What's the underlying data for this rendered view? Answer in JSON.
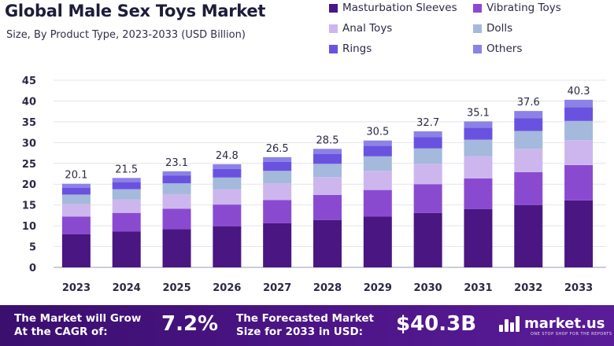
{
  "header": {
    "title": "Global Male Sex Toys Market",
    "subtitle": "Size, By Product Type, 2023-2033 (USD Billion)"
  },
  "chart_data": {
    "type": "bar",
    "stacked": true,
    "categories": [
      "2023",
      "2024",
      "2025",
      "2026",
      "2027",
      "2028",
      "2029",
      "2030",
      "2031",
      "2032",
      "2033"
    ],
    "totals": [
      20.1,
      21.5,
      23.1,
      24.8,
      26.5,
      28.5,
      30.5,
      32.7,
      35.1,
      37.6,
      40.3
    ],
    "series": [
      {
        "name": "Masturbation Sleeves",
        "color": "#4a1682",
        "values": [
          8.0,
          8.6,
          9.2,
          9.9,
          10.6,
          11.4,
          12.2,
          13.1,
          14.0,
          15.0,
          16.1
        ]
      },
      {
        "name": "Vibrating Toys",
        "color": "#8a4ad0",
        "values": [
          4.2,
          4.5,
          4.9,
          5.2,
          5.6,
          6.0,
          6.4,
          6.9,
          7.4,
          7.9,
          8.5
        ]
      },
      {
        "name": "Anal Toys",
        "color": "#cdb6ee",
        "values": [
          3.0,
          3.2,
          3.5,
          3.7,
          4.0,
          4.3,
          4.6,
          4.9,
          5.3,
          5.6,
          6.0
        ]
      },
      {
        "name": "Dolls",
        "color": "#a4b9dc",
        "values": [
          2.3,
          2.5,
          2.6,
          2.8,
          3.0,
          3.2,
          3.5,
          3.7,
          4.0,
          4.3,
          4.6
        ]
      },
      {
        "name": "Rings",
        "color": "#6a52e0",
        "values": [
          1.6,
          1.7,
          1.9,
          2.1,
          2.2,
          2.4,
          2.5,
          2.7,
          2.9,
          3.1,
          3.3
        ]
      },
      {
        "name": "Others",
        "color": "#8c82e6",
        "values": [
          1.0,
          1.0,
          1.0,
          1.1,
          1.1,
          1.2,
          1.3,
          1.4,
          1.5,
          1.7,
          1.8
        ]
      }
    ],
    "y_ticks": [
      "0",
      "5",
      "10",
      "15",
      "20",
      "25",
      "30",
      "35",
      "40",
      "45"
    ],
    "ylim": [
      0,
      45
    ],
    "grid": true,
    "legend_position": "top-right"
  },
  "footer": {
    "cagr_label_line1": "The Market will Grow",
    "cagr_label_line2": "At the CAGR of:",
    "cagr_value": "7.2%",
    "forecast_label_line1": "The Forecasted Market",
    "forecast_label_line2": "Size for 2033 in USD:",
    "forecast_value": "$40.3B",
    "brand": "market.us",
    "brand_tagline": "ONE STOP SHOP FOR THE REPORTS"
  }
}
